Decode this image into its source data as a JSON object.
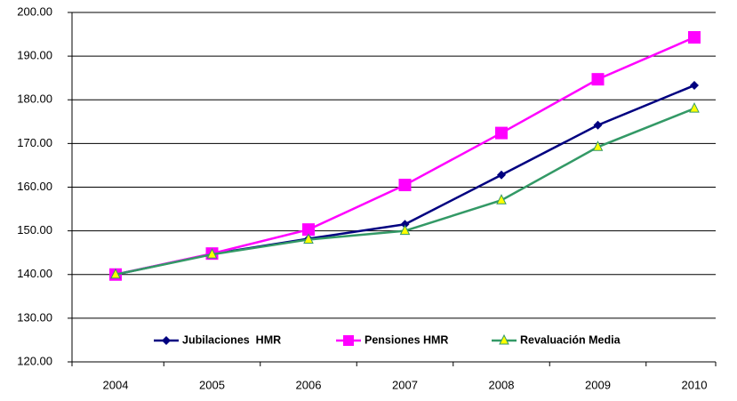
{
  "chart_data": {
    "type": "line",
    "categories": [
      "2004",
      "2005",
      "2006",
      "2007",
      "2008",
      "2009",
      "2010"
    ],
    "series": [
      {
        "name": "Jubilaciones  HMR",
        "color": "#000080",
        "marker": "diamond",
        "values": [
          140,
          144.7,
          148.2,
          151.5,
          162.8,
          174.2,
          183.3
        ]
      },
      {
        "name": "Pensiones HMR",
        "color": "#ff00ff",
        "marker": "square",
        "values": [
          140,
          144.8,
          150.3,
          160.5,
          172.4,
          184.7,
          194.3
        ]
      },
      {
        "name": "Revaluación Media",
        "color": "#339966",
        "marker": "triangle",
        "values": [
          140,
          144.6,
          148,
          150,
          157,
          169.2,
          178
        ]
      }
    ],
    "ylim": [
      120,
      200
    ],
    "yticks": [
      {
        "value": 120,
        "label": "120.00"
      },
      {
        "value": 130,
        "label": "130.00"
      },
      {
        "value": 140,
        "label": "140.00"
      },
      {
        "value": 150,
        "label": "150.00"
      },
      {
        "value": 160,
        "label": "160.00"
      },
      {
        "value": 170,
        "label": "170.00"
      },
      {
        "value": 180,
        "label": "180.00"
      },
      {
        "value": 190,
        "label": "190.00"
      },
      {
        "value": 200,
        "label": "200.00"
      }
    ],
    "grid": true,
    "legend": "bottom"
  }
}
